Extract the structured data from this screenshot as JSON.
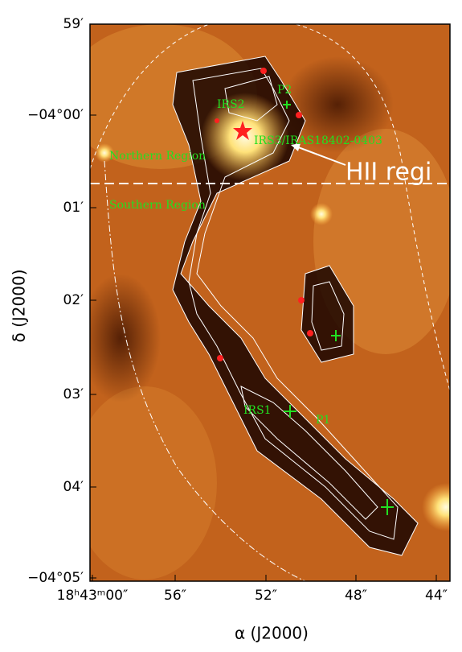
{
  "axes": {
    "y_label": "δ (J2000)",
    "y_ticks": [
      "59′",
      "−04°00′",
      "01′",
      "02′",
      "03′",
      "04′",
      "−04°05′"
    ],
    "x_label": "α (J2000)",
    "x_ticks": [
      "18ʰ43ᵐ00″",
      "56″",
      "52″",
      "48″",
      "44″"
    ]
  },
  "annotations": [
    "P2",
    "IRS2",
    "IRS3/IRAS18402-0403",
    "Northern Region",
    "Southern Region",
    "HII regi",
    "IRS1",
    "P1"
  ]
}
